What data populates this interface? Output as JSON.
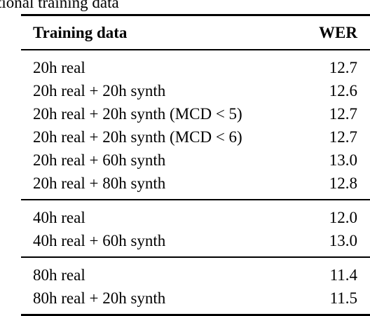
{
  "caption_fragment": "tional training data",
  "table": {
    "headers": {
      "training_data": "Training data",
      "wer": "WER"
    },
    "groups": [
      {
        "rows": [
          {
            "label": "20h real",
            "wer": "12.7"
          },
          {
            "label": "20h real + 20h synth",
            "wer": "12.6"
          },
          {
            "label": "20h real + 20h synth (MCD < 5)",
            "wer": "12.7"
          },
          {
            "label": "20h real + 20h synth (MCD < 6)",
            "wer": "12.7"
          },
          {
            "label": "20h real + 60h synth",
            "wer": "13.0"
          },
          {
            "label": "20h real + 80h synth",
            "wer": "12.8"
          }
        ]
      },
      {
        "rows": [
          {
            "label": "40h real",
            "wer": "12.0"
          },
          {
            "label": "40h real + 60h synth",
            "wer": "13.0"
          }
        ]
      },
      {
        "rows": [
          {
            "label": "80h real",
            "wer": "11.4"
          },
          {
            "label": "80h real + 20h synth",
            "wer": "11.5"
          }
        ]
      }
    ]
  }
}
